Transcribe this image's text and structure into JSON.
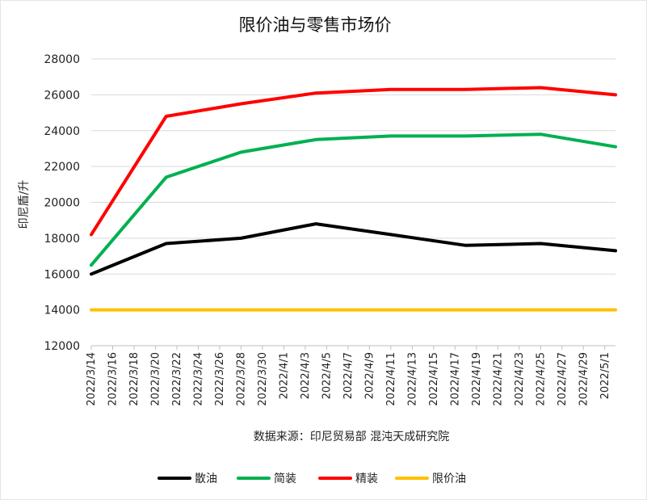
{
  "chart_data": {
    "type": "line",
    "title": "限价油与零售市场价",
    "ylabel": "印尼盾/升",
    "xlabel": "",
    "source": "数据来源：印尼贸易部 混沌天成研究院",
    "ylim": [
      12000,
      28000
    ],
    "yticks": [
      "28000",
      "26000",
      "24000",
      "22000",
      "20000",
      "18000",
      "16000",
      "14000",
      "12000"
    ],
    "x_tick_labels": [
      "2022/3/14",
      "2022/3/16",
      "2022/3/18",
      "2022/3/20",
      "2022/3/22",
      "2022/3/24",
      "2022/3/26",
      "2022/3/28",
      "2022/3/30",
      "2022/4/1",
      "2022/4/3",
      "2022/4/5",
      "2022/4/7",
      "2022/4/9",
      "2022/4/11",
      "2022/4/13",
      "2022/4/15",
      "2022/4/17",
      "2022/4/19",
      "2022/4/21",
      "2022/4/23",
      "2022/4/25",
      "2022/4/27",
      "2022/4/29",
      "2022/5/1"
    ],
    "x_start": "2022/3/14",
    "x_end": "2022/5/2",
    "grid": true,
    "legend_position": "bottom",
    "series": [
      {
        "name": "散油",
        "color": "#000000",
        "points": [
          [
            "2022/3/14",
            16000
          ],
          [
            "2022/3/21",
            17700
          ],
          [
            "2022/3/28",
            18000
          ],
          [
            "2022/4/4",
            18800
          ],
          [
            "2022/4/11",
            18200
          ],
          [
            "2022/4/18",
            17600
          ],
          [
            "2022/4/25",
            17700
          ],
          [
            "2022/5/2",
            17300
          ]
        ]
      },
      {
        "name": "简装",
        "color": "#00b050",
        "points": [
          [
            "2022/3/14",
            16500
          ],
          [
            "2022/3/21",
            21400
          ],
          [
            "2022/3/28",
            22800
          ],
          [
            "2022/4/4",
            23500
          ],
          [
            "2022/4/11",
            23700
          ],
          [
            "2022/4/18",
            23700
          ],
          [
            "2022/4/25",
            23800
          ],
          [
            "2022/5/2",
            23100
          ]
        ]
      },
      {
        "name": "精装",
        "color": "#ff0000",
        "points": [
          [
            "2022/3/14",
            18200
          ],
          [
            "2022/3/21",
            24800
          ],
          [
            "2022/3/28",
            25500
          ],
          [
            "2022/4/4",
            26100
          ],
          [
            "2022/4/11",
            26300
          ],
          [
            "2022/4/18",
            26300
          ],
          [
            "2022/4/25",
            26400
          ],
          [
            "2022/5/2",
            26000
          ]
        ]
      },
      {
        "name": "限价油",
        "color": "#ffc000",
        "points": [
          [
            "2022/3/14",
            14000
          ],
          [
            "2022/5/2",
            14000
          ]
        ]
      }
    ]
  }
}
